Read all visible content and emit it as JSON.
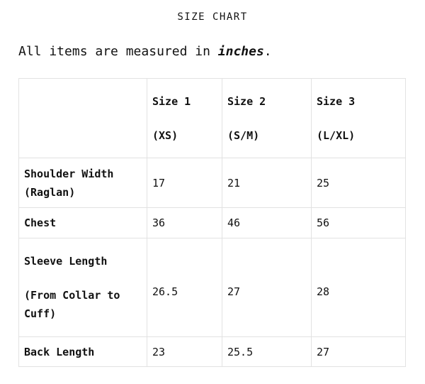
{
  "title": "SIZE CHART",
  "intro": {
    "prefix": "All items are measured in ",
    "unit": "inches",
    "suffix": "."
  },
  "table": {
    "headers": [
      {
        "size": "Size 1",
        "label": "(XS)"
      },
      {
        "size": "Size 2",
        "label": "(S/M)"
      },
      {
        "size": "Size 3",
        "label": "(L/XL)"
      }
    ],
    "rows": [
      {
        "name": "Shoulder Width (Raglan)",
        "values": [
          "17",
          "21",
          "25"
        ]
      },
      {
        "name": "Chest",
        "values": [
          "36",
          "46",
          "56"
        ]
      },
      {
        "name": "Sleeve Length",
        "note": "(From Collar to Cuff)",
        "values": [
          "26.5",
          "27",
          "28"
        ]
      },
      {
        "name": "Back Length",
        "values": [
          "23",
          "25.5",
          "27"
        ]
      }
    ]
  }
}
